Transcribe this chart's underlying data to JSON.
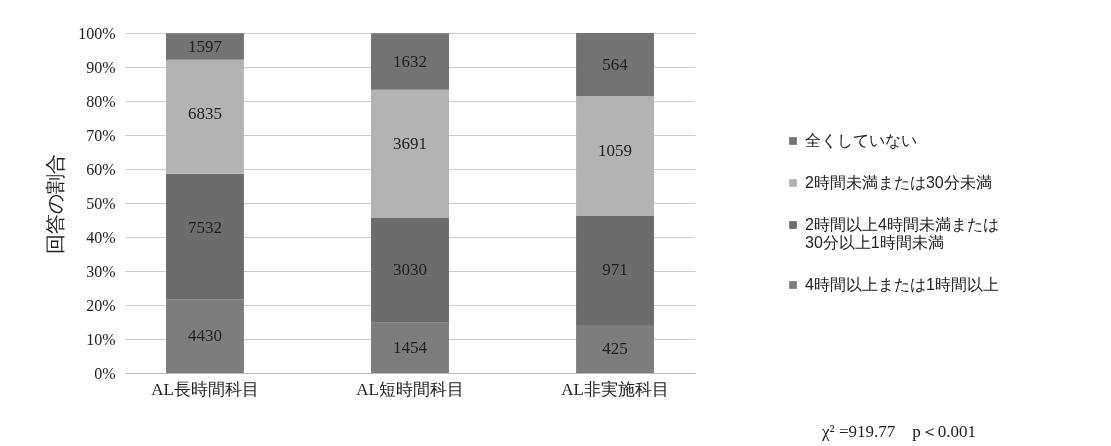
{
  "chart_data": {
    "type": "bar",
    "stacked": true,
    "ylabel": "回答の割合",
    "categories": [
      "AL長時間科目",
      "AL短時間科目",
      "AL非実施科目"
    ],
    "series": [
      {
        "name": "4時間以上または1時間以上",
        "color": "#7d7d7d",
        "values": [
          21.7,
          14.8,
          14.1
        ]
      },
      {
        "name": "2時間以上4時間未満または30分以上1時間未満",
        "color": "#6c6c6c",
        "values": [
          36.9,
          30.9,
          32.2
        ]
      },
      {
        "name": "2時間未満または30分未満",
        "color": "#b3b3b3",
        "values": [
          33.5,
          37.6,
          35.1
        ]
      },
      {
        "name": "全くしていない",
        "color": "#737373",
        "values": [
          7.8,
          16.6,
          18.6
        ]
      }
    ],
    "ylim": [
      0,
      100
    ],
    "yticks": [
      {
        "value": 0,
        "label": "0%"
      },
      {
        "value": 10,
        "label": "10%"
      },
      {
        "value": 20,
        "label": "20%"
      },
      {
        "value": 30,
        "label": "30%"
      },
      {
        "value": 40,
        "label": "40%"
      },
      {
        "value": 50,
        "label": "50%"
      },
      {
        "value": 60,
        "label": "60%"
      },
      {
        "value": 70,
        "label": "70%"
      },
      {
        "value": 80,
        "label": "80%"
      },
      {
        "value": 90,
        "label": "90%"
      },
      {
        "value": 100,
        "label": "100%"
      }
    ],
    "grid": "y",
    "legend": "right",
    "annotations": [
      {
        "text": "4430",
        "x": "AL長時間科目",
        "y": 21.7
      },
      {
        "text": "7532",
        "x": "AL長時間科目",
        "y": 58.6
      },
      {
        "text": "6835",
        "x": "AL長時間科目",
        "y": 92.1
      },
      {
        "text": "1597",
        "x": "AL長時間科目",
        "y": 99.9
      },
      {
        "text": "1454",
        "x": "AL短時間科目",
        "y": 14.8
      },
      {
        "text": "3030",
        "x": "AL短時間科目",
        "y": 45.7
      },
      {
        "text": "3691",
        "x": "AL短時間科目",
        "y": 83.3
      },
      {
        "text": "1632",
        "x": "AL短時間科目",
        "y": 99.9
      },
      {
        "text": "425",
        "x": "AL非実施科目",
        "y": 14.1
      },
      {
        "text": "971",
        "x": "AL非実施科目",
        "y": 46.3
      },
      {
        "text": "1059",
        "x": "AL非実施科目",
        "y": 81.4
      },
      {
        "text": "564",
        "x": "AL非実施科目",
        "y": 100.0
      },
      "χ² =919.77　p＜0.001"
    ]
  }
}
